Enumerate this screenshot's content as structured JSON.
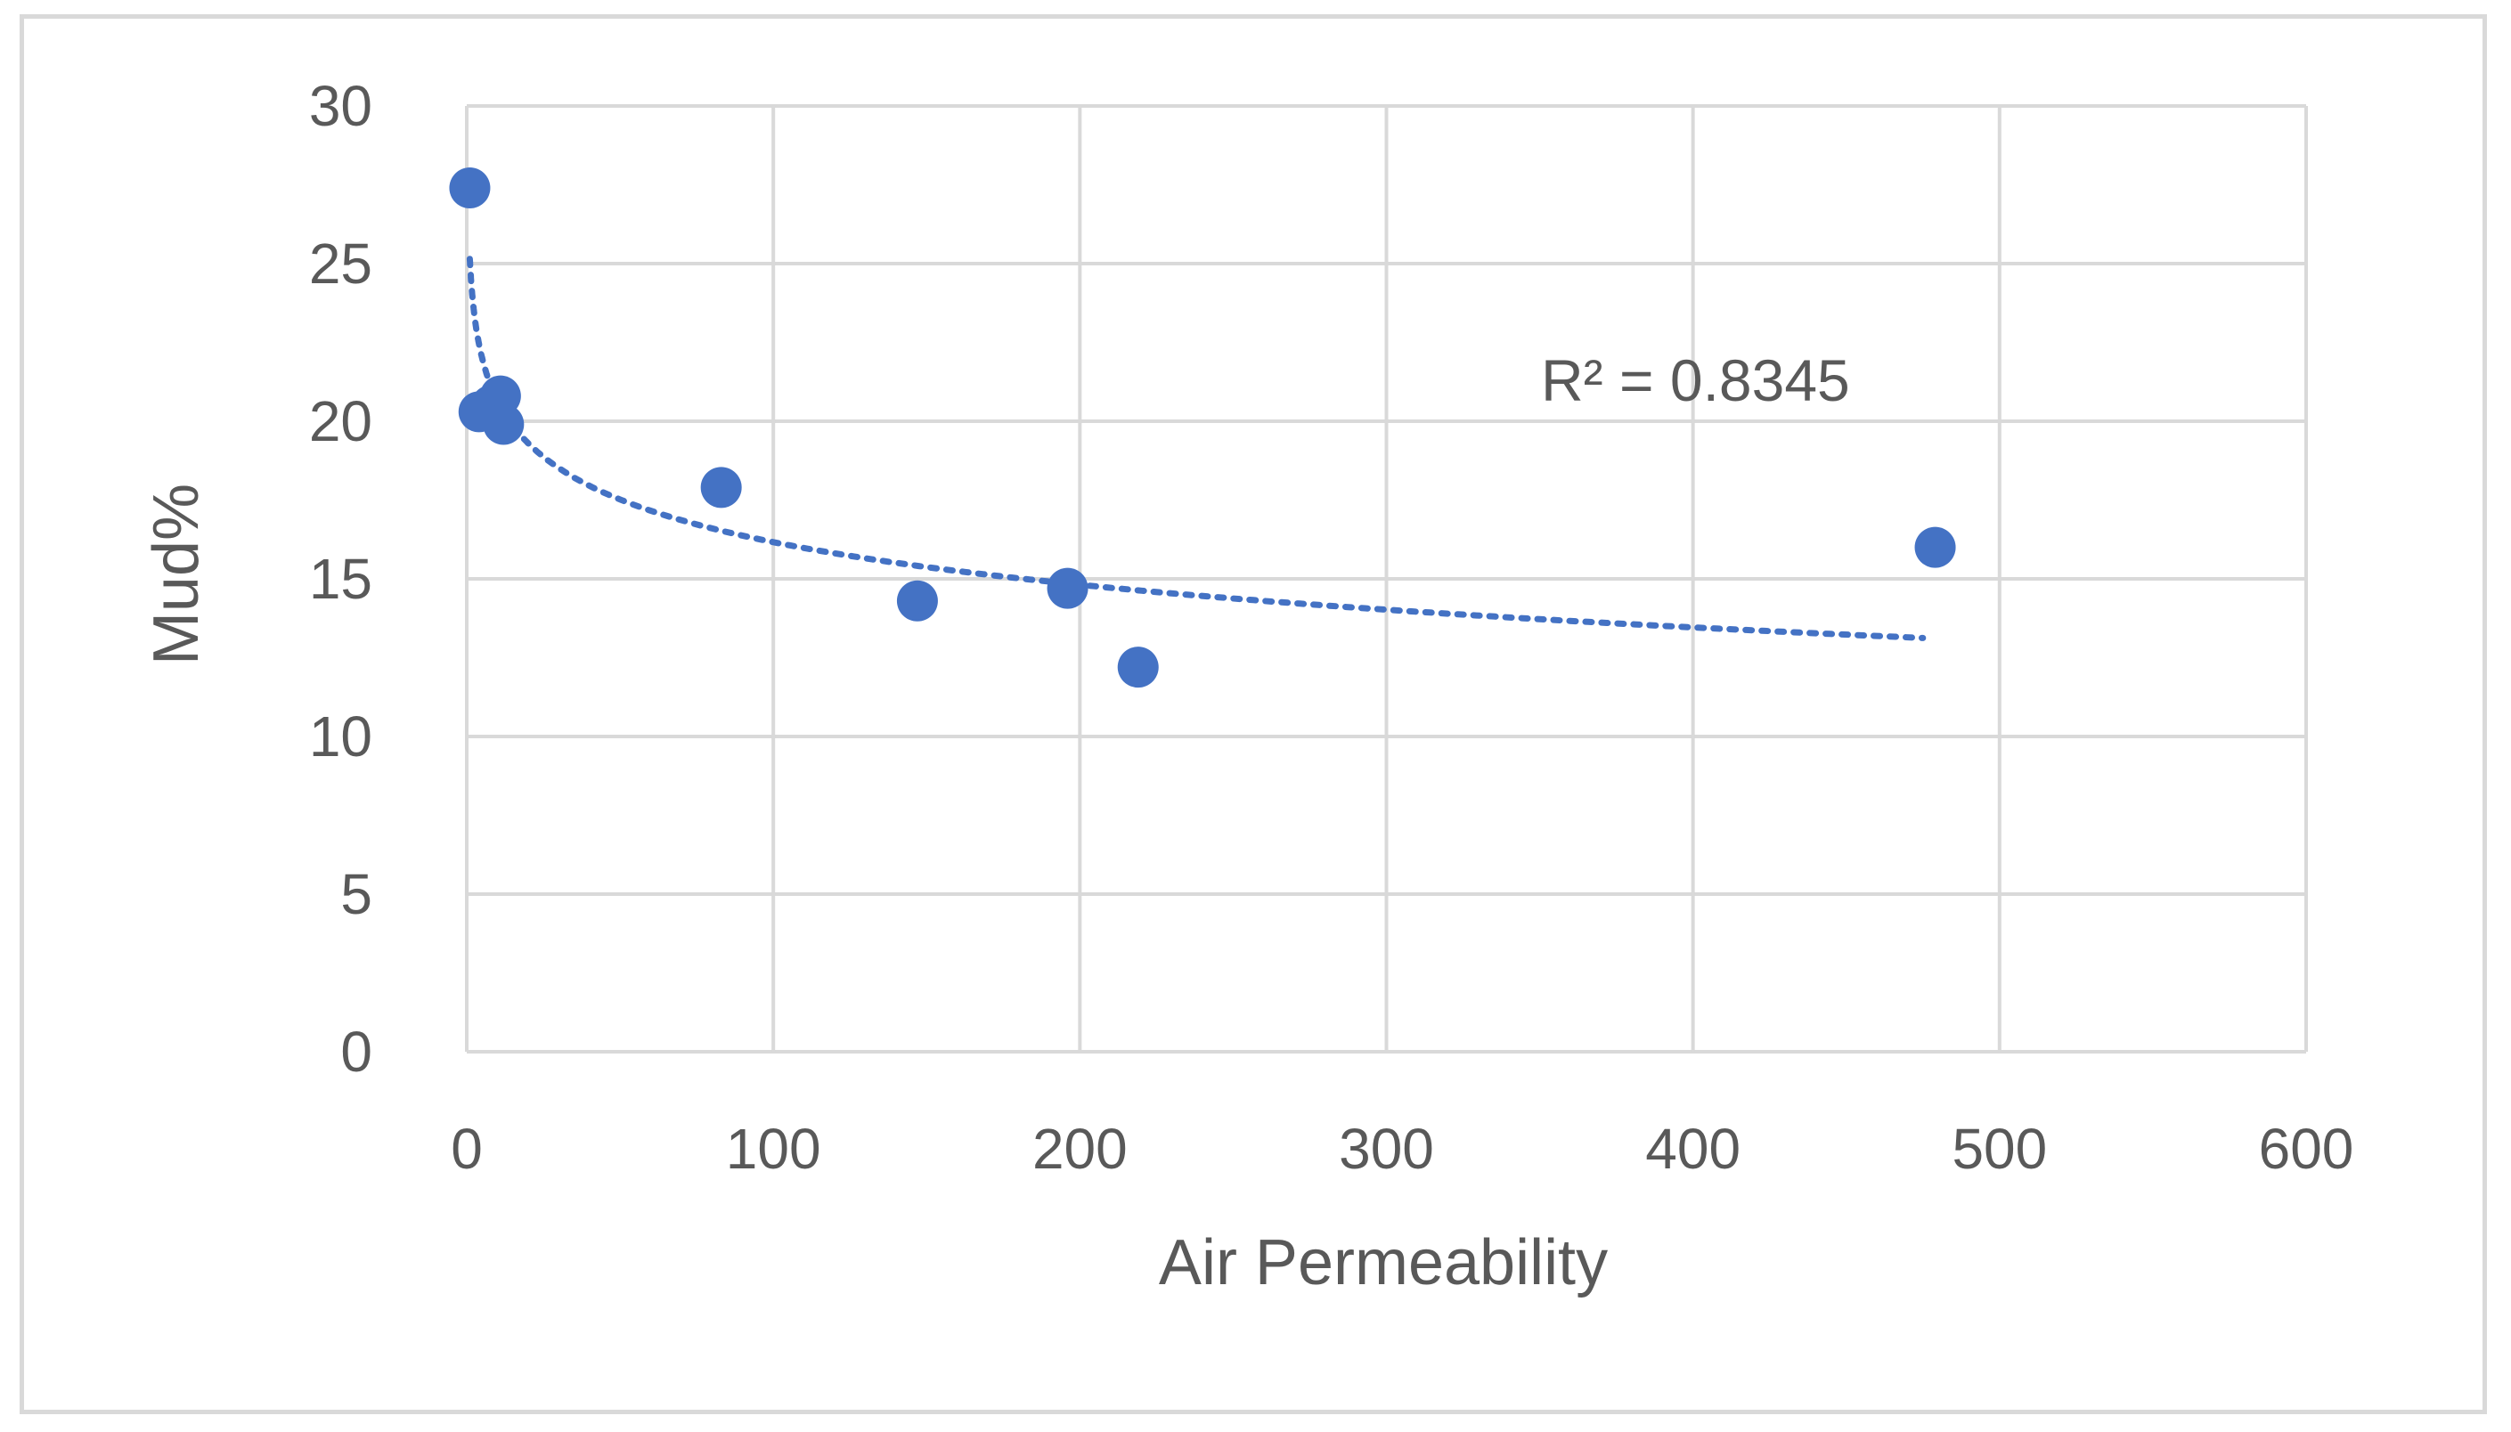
{
  "chart_data": {
    "type": "scatter",
    "title": "",
    "xlabel": "Air Permeability",
    "ylabel": "Mud%",
    "xlim": [
      0,
      600
    ],
    "ylim": [
      0,
      30
    ],
    "xticks": [
      0,
      100,
      200,
      300,
      400,
      500,
      600
    ],
    "yticks": [
      0,
      5,
      10,
      15,
      20,
      25,
      30
    ],
    "xtick_labels": [
      "0",
      "100",
      "200",
      "300",
      "400",
      "500",
      "600"
    ],
    "ytick_labels": [
      "0",
      "5",
      "10",
      "15",
      "20",
      "25",
      "30"
    ],
    "grid": true,
    "legend": "none",
    "series": [
      {
        "name": "Mud%",
        "color": "#4472c4",
        "points": [
          {
            "x": 1,
            "y": 27.4
          },
          {
            "x": 4,
            "y": 20.3
          },
          {
            "x": 8,
            "y": 20.5
          },
          {
            "x": 11,
            "y": 20.8
          },
          {
            "x": 12,
            "y": 19.9
          },
          {
            "x": 83,
            "y": 17.9
          },
          {
            "x": 147,
            "y": 14.3
          },
          {
            "x": 196,
            "y": 14.7
          },
          {
            "x": 219,
            "y": 12.2
          },
          {
            "x": 479,
            "y": 16.0
          }
        ]
      }
    ],
    "trendline": {
      "type": "logarithmic",
      "style": "dotted",
      "color": "#4472c4",
      "x_range": [
        1,
        475
      ],
      "r_squared_label": "R² = 0.8345",
      "r_squared": 0.8345
    }
  }
}
